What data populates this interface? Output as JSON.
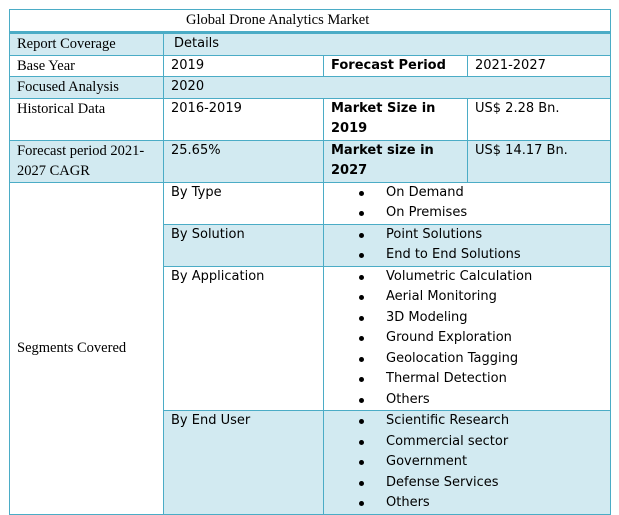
{
  "title": "Global Drone Analytics Market",
  "header": {
    "label": "Report Coverage",
    "value": "Details"
  },
  "rows": {
    "base_year": {
      "label": "Base Year",
      "value": "2019",
      "label2": "Forecast Period",
      "value2": "2021-2027"
    },
    "focused": {
      "label": "Focused Analysis",
      "value": "2020"
    },
    "historical": {
      "label": "Historical Data",
      "value": "2016-2019",
      "label2": "Market Size in 2019",
      "value2": "US$ 2.28 Bn."
    },
    "forecast": {
      "label": "Forecast period 2021-2027 CAGR",
      "value": "25.65%",
      "label2": "Market size in 2027",
      "value2": "US$ 14.17 Bn."
    }
  },
  "segments": {
    "label": "Segments Covered",
    "groups": [
      {
        "name": "By Type",
        "items": [
          "On Demand",
          "On Premises"
        ]
      },
      {
        "name": "By Solution",
        "items": [
          "Point Solutions",
          "End to End Solutions"
        ]
      },
      {
        "name": "By Application",
        "items": [
          "Volumetric Calculation",
          "Aerial Monitoring",
          "3D Modeling",
          "Ground Exploration",
          "Geolocation Tagging",
          "Thermal Detection",
          "Others"
        ]
      },
      {
        "name": "By End User",
        "items": [
          "Scientific Research",
          "Commercial sector",
          "Government",
          "Defense Services",
          "Others"
        ]
      }
    ]
  },
  "colors": {
    "border": "#4bacc6",
    "fill": "#d2eaf1"
  }
}
